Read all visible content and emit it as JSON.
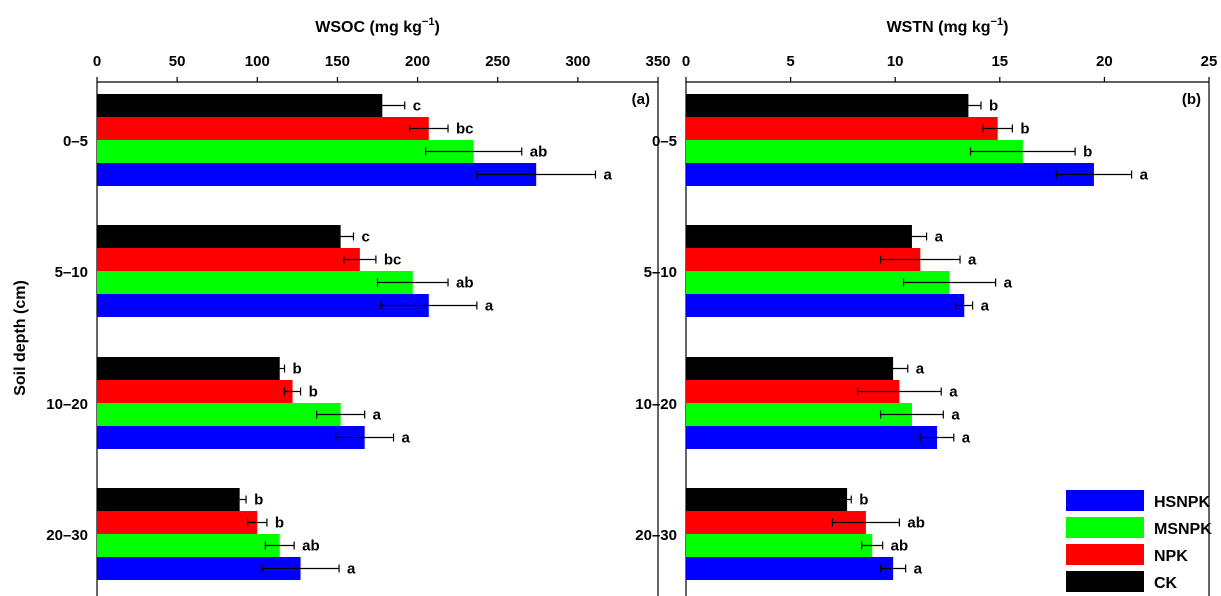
{
  "chart_data": {
    "y_title": "Soil depth (cm)",
    "categories": [
      "0–5",
      "5–10",
      "10–20",
      "20–30"
    ],
    "series": [
      {
        "name": "HSNPK",
        "color": "#0000ff"
      },
      {
        "name": "MSNPK",
        "color": "#00ff00"
      },
      {
        "name": "NPK",
        "color": "#ff0000"
      },
      {
        "name": "CK",
        "color": "#000000"
      }
    ],
    "legend": {
      "position": "bottom-right",
      "order": [
        "HSNPK",
        "MSNPK",
        "NPK",
        "CK"
      ]
    },
    "panels": [
      {
        "type": "bar",
        "orientation": "horizontal",
        "panel_label": "(a)",
        "x_title_main": "WSOC (mg kg",
        "x_title_exp": "−1",
        "x_title_close": ")",
        "xlim": [
          0,
          350
        ],
        "ticks": [
          "0",
          "50",
          "100",
          "150",
          "200",
          "250",
          "300",
          "350"
        ],
        "tick_values": [
          0,
          50,
          100,
          150,
          200,
          250,
          300,
          350
        ],
        "values": {
          "CK": [
            178,
            152,
            114,
            89
          ],
          "NPK": [
            207,
            164,
            122,
            100
          ],
          "MSNPK": [
            235,
            197,
            152,
            114
          ],
          "HSNPK": [
            274,
            207,
            167,
            127
          ]
        },
        "errors": {
          "CK": [
            14,
            8,
            3,
            4
          ],
          "NPK": [
            12,
            10,
            5,
            6
          ],
          "MSNPK": [
            30,
            22,
            15,
            9
          ],
          "HSNPK": [
            37,
            30,
            18,
            24
          ]
        },
        "letters": {
          "CK": [
            "c",
            "c",
            "b",
            "b"
          ],
          "NPK": [
            "bc",
            "bc",
            "b",
            "b"
          ],
          "MSNPK": [
            "ab",
            "ab",
            "a",
            "ab"
          ],
          "HSNPK": [
            "a",
            "a",
            "a",
            "a"
          ]
        }
      },
      {
        "type": "bar",
        "orientation": "horizontal",
        "panel_label": "(b)",
        "x_title_main": "WSTN (mg kg",
        "x_title_exp": "−1",
        "x_title_close": ")",
        "xlim": [
          0,
          25
        ],
        "ticks": [
          "0",
          "5",
          "10",
          "15",
          "20",
          "25"
        ],
        "tick_values": [
          0,
          5,
          10,
          15,
          20,
          25
        ],
        "values": {
          "CK": [
            13.5,
            10.8,
            9.9,
            7.7
          ],
          "NPK": [
            14.9,
            11.2,
            10.2,
            8.6
          ],
          "MSNPK": [
            16.1,
            12.6,
            10.8,
            8.9
          ],
          "HSNPK": [
            19.5,
            13.3,
            12.0,
            9.9
          ]
        },
        "errors": {
          "CK": [
            0.6,
            0.7,
            0.7,
            0.2
          ],
          "NPK": [
            0.7,
            1.9,
            2.0,
            1.6
          ],
          "MSNPK": [
            2.5,
            2.2,
            1.5,
            0.5
          ],
          "HSNPK": [
            1.8,
            0.4,
            0.8,
            0.6
          ]
        },
        "letters": {
          "CK": [
            "b",
            "a",
            "a",
            "b"
          ],
          "NPK": [
            "b",
            "a",
            "a",
            "ab"
          ],
          "MSNPK": [
            "b",
            "a",
            "a",
            "ab"
          ],
          "HSNPK": [
            "a",
            "a",
            "a",
            "a"
          ]
        }
      }
    ]
  }
}
